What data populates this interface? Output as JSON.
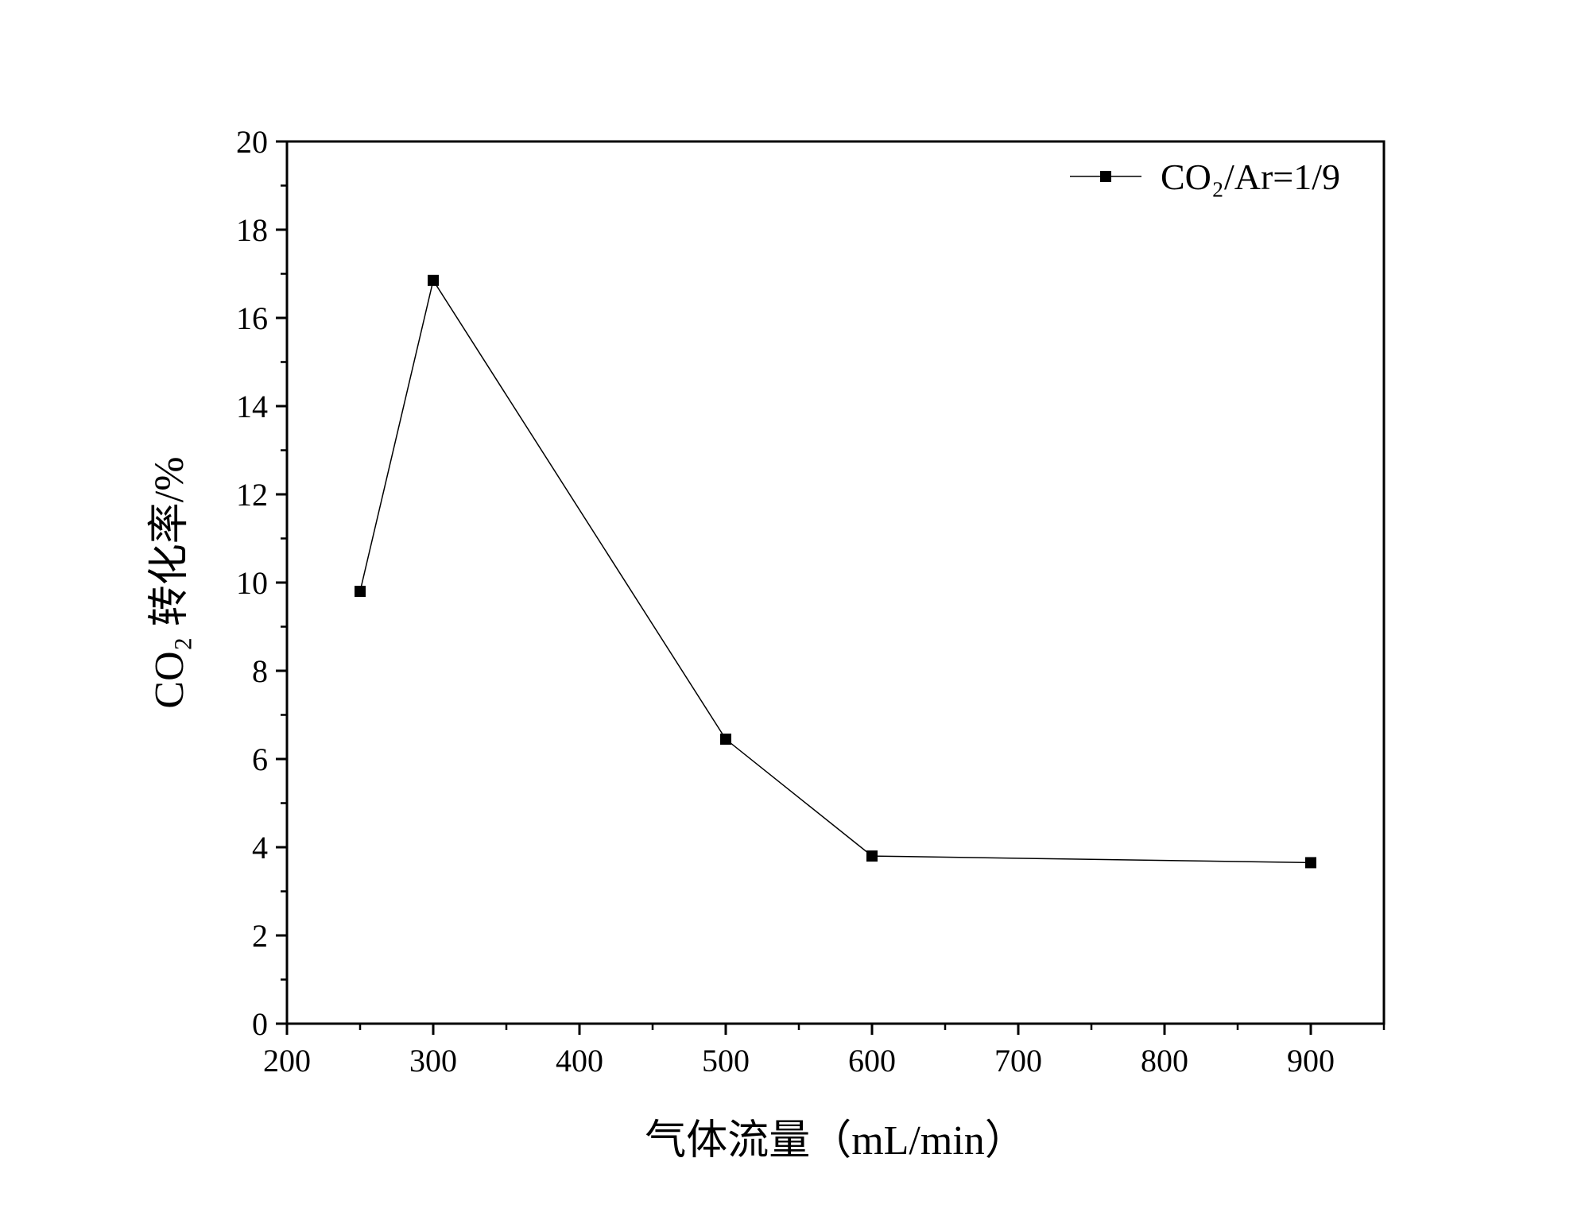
{
  "chart_data": {
    "type": "line",
    "xlabel": "气体流量（mL/min）",
    "ylabel": "CO₂ 转化率/%",
    "xlim": [
      200,
      950
    ],
    "ylim": [
      0,
      20
    ],
    "x_ticks": [
      200,
      300,
      400,
      500,
      600,
      700,
      800,
      900
    ],
    "y_ticks": [
      0,
      2,
      4,
      6,
      8,
      10,
      12,
      14,
      16,
      18,
      20
    ],
    "grid": false,
    "legend_position": "top-right",
    "series": [
      {
        "name": "CO₂/Ar=1/9",
        "marker": "square",
        "color": "#000000",
        "x": [
          250,
          300,
          500,
          600,
          900
        ],
        "y": [
          9.8,
          16.85,
          6.45,
          3.8,
          3.65
        ]
      }
    ]
  }
}
